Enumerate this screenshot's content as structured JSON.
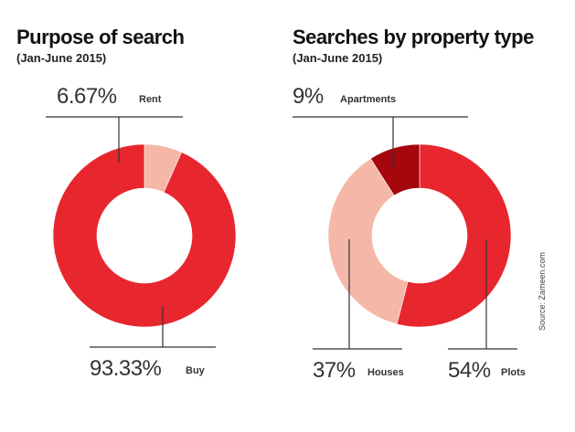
{
  "source": "Source: Zameen.com",
  "chart_data": [
    {
      "type": "pie",
      "donut": true,
      "title": "Purpose of search",
      "subtitle": "(Jan-June 2015)",
      "slices": [
        {
          "label": "Rent",
          "value": 6.67,
          "display": "6.67%",
          "color": "#f5b7a8"
        },
        {
          "label": "Buy",
          "value": 93.33,
          "display": "93.33%",
          "color": "#e8262e"
        }
      ]
    },
    {
      "type": "pie",
      "donut": true,
      "title": "Searches by property type",
      "subtitle": "(Jan-June 2015)",
      "slices": [
        {
          "label": "Plots",
          "value": 54,
          "display": "54%",
          "color": "#e8262e"
        },
        {
          "label": "Houses",
          "value": 37,
          "display": "37%",
          "color": "#f5b7a8"
        },
        {
          "label": "Apartments",
          "value": 9,
          "display": "9%",
          "color": "#a5070d"
        }
      ]
    }
  ]
}
